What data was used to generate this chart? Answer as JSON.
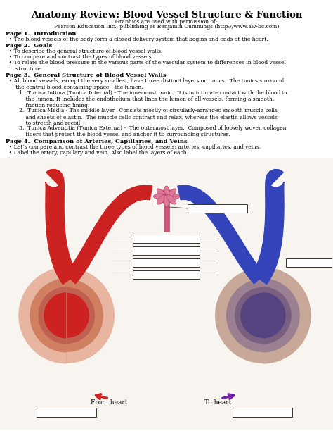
{
  "title": "Anatomy Review: Blood Vessel Structure & Function",
  "subtitle_line1": "Graphics are used with permission of:",
  "subtitle_line2": "Pearson Education Inc., publishing as Benjamin Cummings (http://www.aw-bc.com)",
  "page1_heading": "Page 1.  Introduction",
  "page1_text": "  • The blood vessels of the body form a closed delivery system that begins and ends at the heart.",
  "page2_heading": "Page 2.  Goals",
  "page2_bullets": [
    "  • To describe the general structure of blood vessel walls.",
    "  • To compare and contrast the types of blood vessels.",
    "  • To relate the blood pressure in the various parts of the vascular system to differences in blood vessel\n      structure."
  ],
  "page3_heading": "Page 3.  General Structure of Blood Vessel Walls",
  "page3_intro": "  • All blood vessels, except the very smallest, have three distinct layers or tunics.  The tunics surround\n      the central blood-containing space - the lumen.",
  "page3_items": [
    "        1.  Tunica Intima (Tunica Internal) - The innermost tunic.  It is in intimate contact with the blood in\n            the lumen. It includes the endothelium that lines the lumen of all vessels, forming a smooth,\n            friction reducing lining.",
    "        2.  Tunica Media - The middle layer.  Consists mostly of circularly-arranged smooth muscle cells\n            and sheets of elastin.  The muscle cells contract and relax, whereas the elastin allows vessels\n            to stretch and recoil.",
    "        3.  Tunica Adventitia (Tunica Externa) -  The outermost layer.  Composed of loosely woven collagen\n            fibers that protect the blood vessel and anchor it to surrounding structures."
  ],
  "page4_heading": "Page 4.  Comparison of Arteries, Capillaries, and Veins",
  "page4_bullets": [
    "  • Let’s compare and contrast the three types of blood vessels: arteries, capillaries, and veins.",
    "  • Label the artery, capillary and vein. Also label the layers of each."
  ],
  "from_heart_label": "From heart",
  "to_heart_label": "To heart",
  "bg_color": "#ffffff",
  "text_color": "#000000",
  "artery_colors": [
    "#e8b5a0",
    "#d08060",
    "#c06050",
    "#cc2222"
  ],
  "vein_colors": [
    "#c8a898",
    "#9a8090",
    "#7a6080",
    "#554480"
  ],
  "cap_color": "#cc5577",
  "cap_mesh_color": "#dd7799",
  "arrow_red": "#cc2222",
  "arrow_purple": "#7722aa",
  "box_edge": "#333333"
}
